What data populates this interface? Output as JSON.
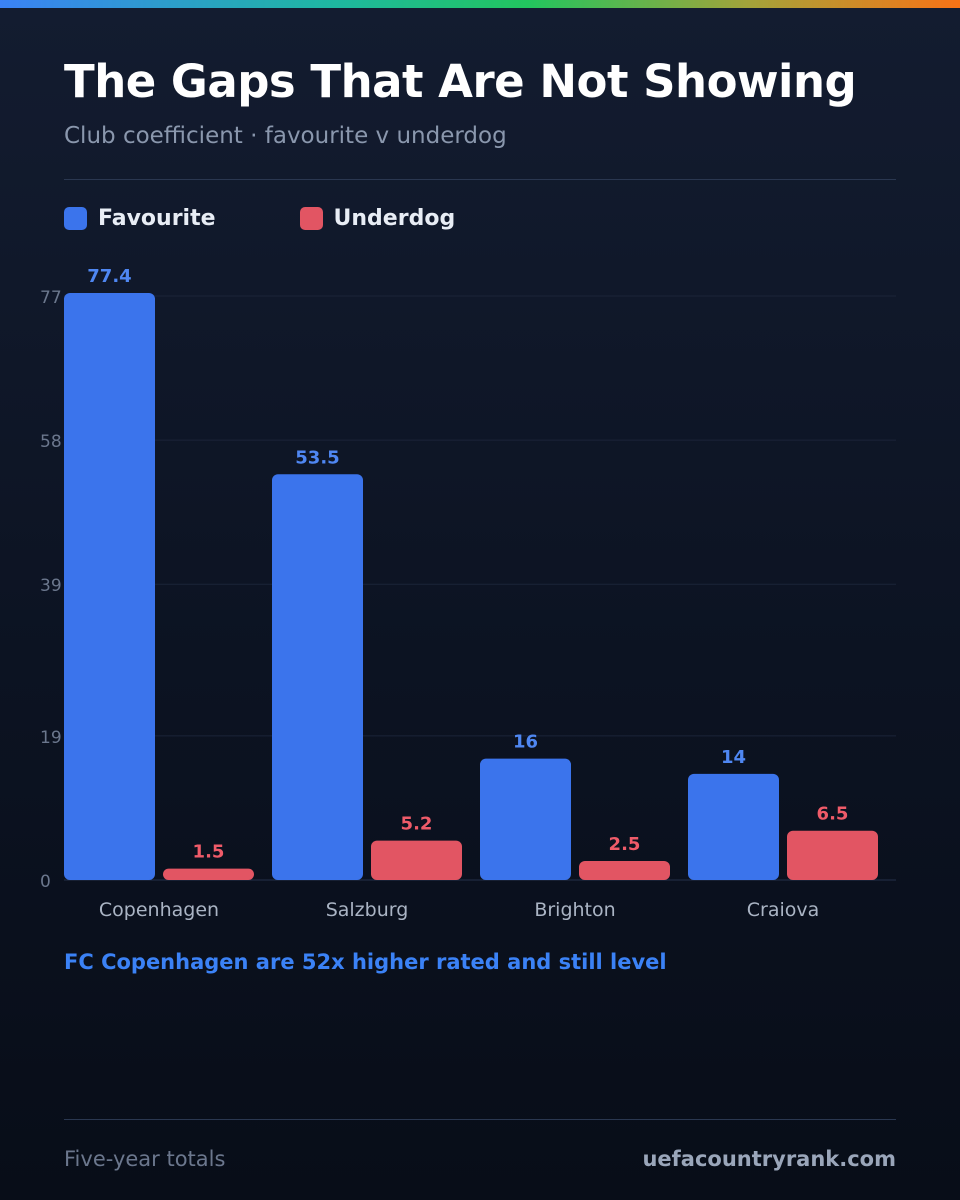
{
  "header": {
    "title": "The Gaps That Are Not Showing",
    "subtitle": "Club coefficient · favourite v underdog"
  },
  "colors": {
    "favourite": "#3b74ec",
    "underdog": "#e25563",
    "favourite_label": "#4f87f2",
    "underdog_label": "#ef5b69",
    "grid": "#1b2438",
    "tick": "#6b778d",
    "category": "#aab4c4",
    "background": "#0f1729"
  },
  "legend": {
    "favourite_label": "Favourite",
    "underdog_label": "Underdog"
  },
  "chart_data": {
    "type": "bar",
    "categories": [
      "Copenhagen",
      "Salzburg",
      "Brighton",
      "Craiova"
    ],
    "series": [
      {
        "name": "Favourite",
        "values": [
          77.4,
          53.5,
          16,
          14
        ],
        "labels": [
          "77.4",
          "53.5",
          "16",
          "14"
        ]
      },
      {
        "name": "Underdog",
        "values": [
          1.5,
          5.2,
          2.5,
          6.5
        ],
        "labels": [
          "1.5",
          "5.2",
          "2.5",
          "6.5"
        ]
      }
    ],
    "ylim": [
      0,
      77.4
    ],
    "yticks": [
      0,
      19,
      39,
      58,
      77
    ],
    "grid": true,
    "legend_position": "top-left"
  },
  "insight": "FC Copenhagen are 52x higher rated and still level",
  "footer": {
    "note": "Five-year totals",
    "site": "uefacountryrank.com"
  }
}
